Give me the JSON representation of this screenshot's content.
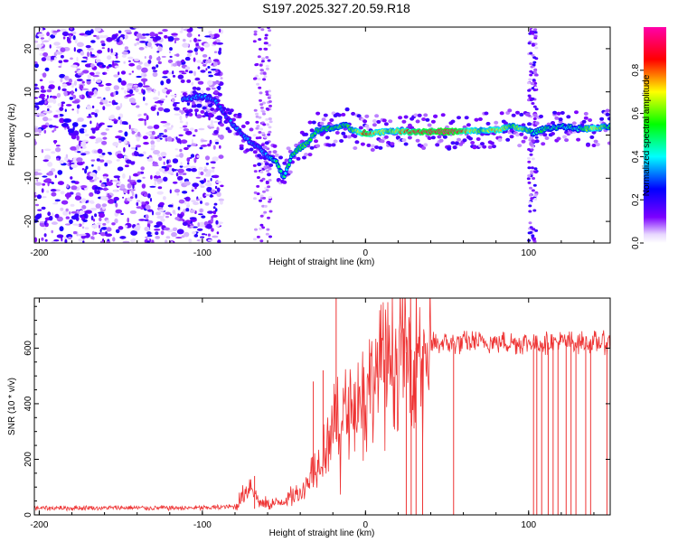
{
  "title": "S197.2025.327.20.59.R18",
  "chart_data": [
    {
      "type": "heatmap",
      "xlabel": "Height of straight line (km)",
      "ylabel": "Frequency (Hz)",
      "xlim": [
        -203,
        150
      ],
      "ylim": [
        -25,
        25
      ],
      "x_ticks": [
        -200,
        -100,
        0,
        100
      ],
      "y_ticks": [
        -20,
        -10,
        0,
        10,
        20
      ],
      "colorbar": {
        "label": "Normalized spectral amplitude",
        "range": [
          0,
          1
        ],
        "ticks": [
          0.0,
          0.2,
          0.4,
          0.6,
          0.8
        ],
        "colormap": [
          "#ffffff",
          "#7b00ff",
          "#0000ff",
          "#00ffff",
          "#00ff00",
          "#ffff00",
          "#ff0000",
          "#ff00aa"
        ]
      },
      "ridge": {
        "x": [
          -112,
          -100,
          -92,
          -85,
          -80,
          -75,
          -70,
          -65,
          -60,
          -55,
          -50,
          -45,
          -40,
          -35,
          -30,
          -25,
          -20,
          -15,
          -12,
          -8,
          -3,
          0,
          5,
          15,
          25,
          40,
          55,
          70,
          80,
          90,
          95,
          100,
          103,
          110,
          120,
          130,
          140,
          150
        ],
        "freq": [
          8.5,
          9,
          8,
          4,
          2,
          0,
          -2,
          -3,
          -5,
          -6,
          -10,
          -4.5,
          -3,
          -1.5,
          1,
          1.5,
          1.5,
          2,
          2.5,
          1,
          0.5,
          0.5,
          0.5,
          1,
          0.8,
          0.8,
          0.8,
          1,
          1.2,
          2,
          1.5,
          1,
          0.5,
          1.5,
          2,
          1.5,
          1.5,
          2
        ],
        "amplitude": [
          0.3,
          0.35,
          0.3,
          0.25,
          0.35,
          0.3,
          0.35,
          0.3,
          0.35,
          0.45,
          0.45,
          0.5,
          0.55,
          0.55,
          0.55,
          0.55,
          0.5,
          0.55,
          0.5,
          0.6,
          0.7,
          0.95,
          0.75,
          0.6,
          0.85,
          0.95,
          0.95,
          0.6,
          0.75,
          0.55,
          0.7,
          0.55,
          0.45,
          0.5,
          0.45,
          0.45,
          0.7,
          0.5
        ]
      },
      "noise_until_x": -90
    },
    {
      "type": "line",
      "xlabel": "Height of straight line (km)",
      "ylabel": "SNR (10 * v/v)",
      "xlim": [
        -203,
        150
      ],
      "ylim": [
        0,
        780
      ],
      "x_ticks": [
        -200,
        -100,
        0,
        100
      ],
      "y_ticks": [
        0,
        200,
        400,
        600
      ],
      "color": "#ee3333",
      "profile": {
        "x": [
          -203,
          -100,
          -80,
          -70,
          -65,
          -55,
          -40,
          -30,
          -20,
          -10,
          0,
          10,
          20,
          30,
          40,
          60,
          150
        ],
        "snr": [
          25,
          25,
          30,
          110,
          40,
          40,
          80,
          180,
          320,
          380,
          450,
          530,
          570,
          600,
          615,
          620,
          620
        ]
      },
      "spikes": [
        {
          "x": -18,
          "snr": 790
        },
        {
          "x": -26,
          "snr": 520
        },
        {
          "x": -32,
          "snr": 480
        },
        {
          "x": -68,
          "snr": 140
        }
      ],
      "dropouts_x": [
        25,
        28,
        31,
        35,
        54,
        103,
        105,
        108,
        112,
        115,
        118,
        123,
        126,
        129,
        135,
        138,
        148
      ]
    }
  ]
}
